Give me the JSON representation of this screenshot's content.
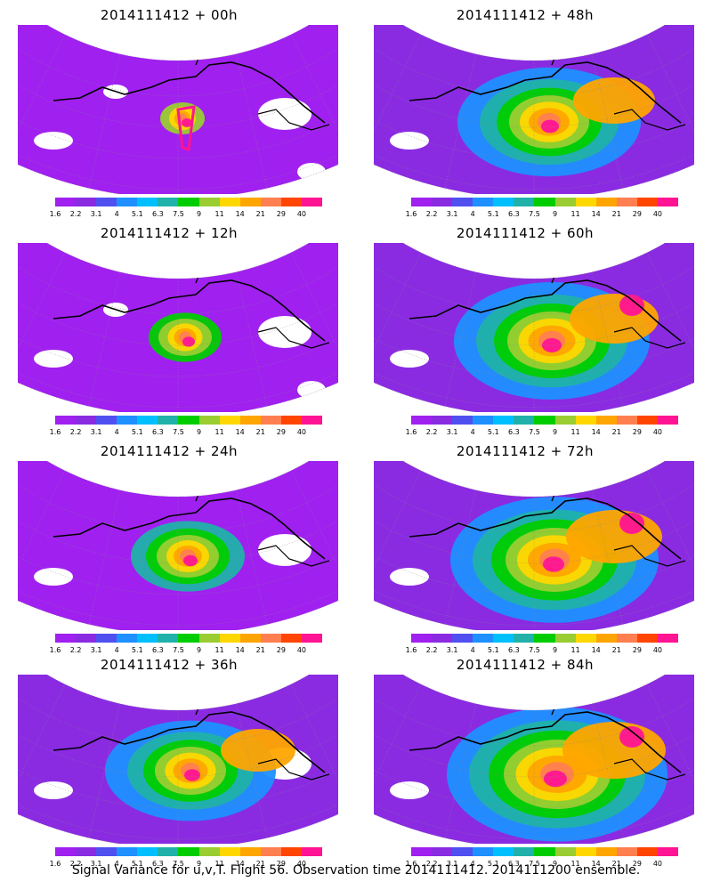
{
  "panels": [
    {
      "title": "2014111412 + 00h",
      "stage": 0
    },
    {
      "title": "2014111412 + 48h",
      "stage": 4
    },
    {
      "title": "2014111412 + 12h",
      "stage": 1
    },
    {
      "title": "2014111412 + 60h",
      "stage": 5
    },
    {
      "title": "2014111412 + 24h",
      "stage": 2
    },
    {
      "title": "2014111412 + 72h",
      "stage": 6
    },
    {
      "title": "2014111412 + 36h",
      "stage": 3
    },
    {
      "title": "2014111412 + 84h",
      "stage": 7
    }
  ],
  "colorbar": {
    "labels": [
      "1.6",
      "2.2",
      "3.1",
      "4",
      "5.1",
      "6.3",
      "7.5",
      "9",
      "11",
      "14",
      "21",
      "29",
      "40"
    ],
    "colors": [
      "#a020f0",
      "#8a2be2",
      "#5050f0",
      "#1e90ff",
      "#00bfff",
      "#20b2aa",
      "#00cd00",
      "#9acd32",
      "#ffd700",
      "#ffa500",
      "#ff7f50",
      "#ff4500",
      "#ff1493"
    ]
  },
  "footer": "Signal Variance for u,v,T. Flight 56. Observation time 2014111412. 2014111200 ensemble."
}
